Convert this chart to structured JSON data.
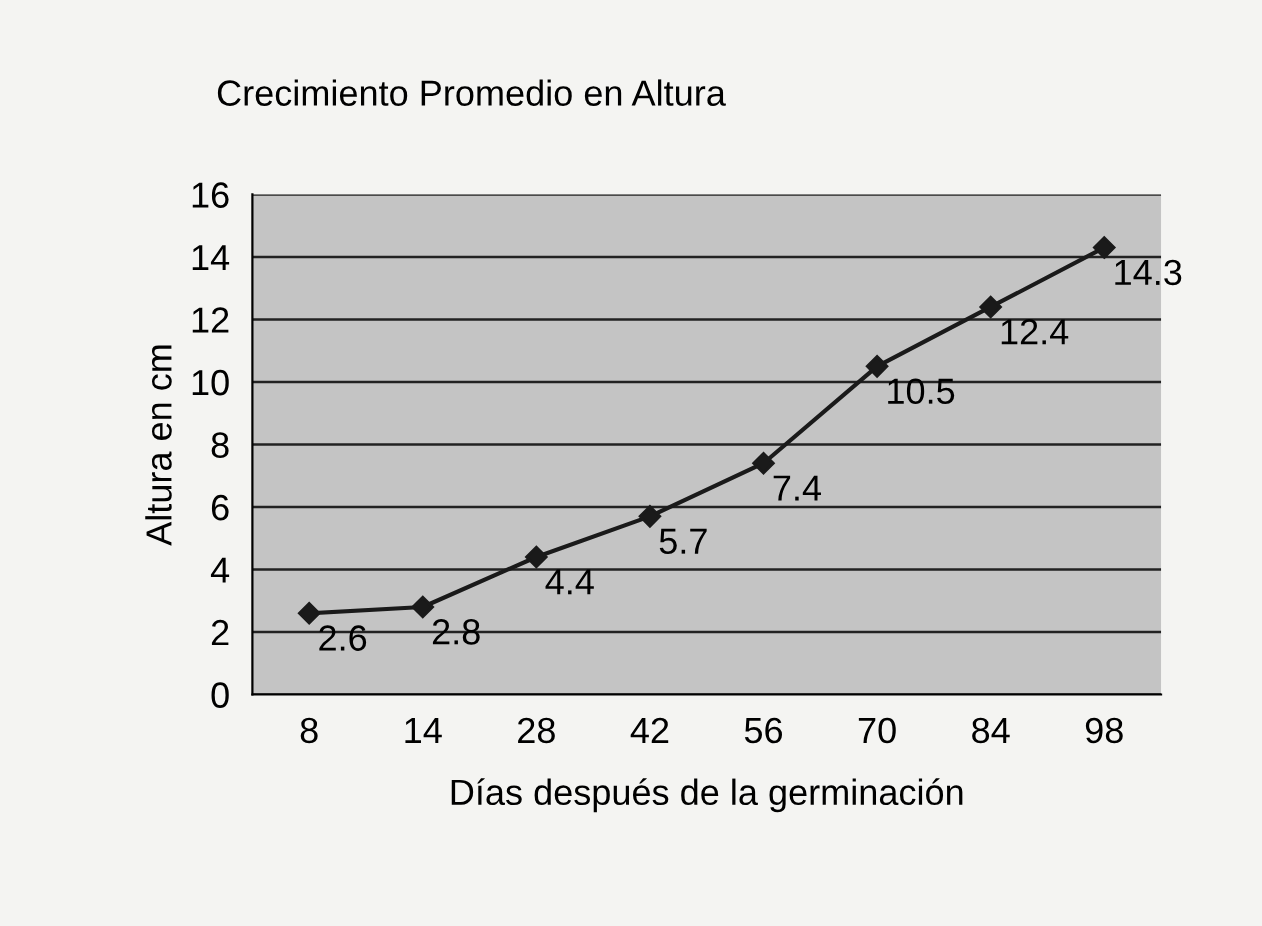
{
  "chart_data": {
    "type": "line",
    "title": "Crecimiento Promedio en Altura",
    "xlabel": "Días después de la germinación",
    "ylabel": "Altura en cm",
    "categories": [
      "8",
      "14",
      "28",
      "42",
      "56",
      "70",
      "84",
      "98"
    ],
    "series": [
      {
        "color": "#1a1a1a",
        "values": [
          2.6,
          2.8,
          4.4,
          5.7,
          7.4,
          10.5,
          12.4,
          14.3
        ]
      }
    ],
    "ylim": [
      0,
      16
    ],
    "yticks": [
      0,
      2,
      4,
      6,
      8,
      10,
      12,
      14,
      16
    ],
    "grid": "y",
    "marker": "diamond",
    "line_style": "solid",
    "data_labels": true,
    "legend": false
  }
}
